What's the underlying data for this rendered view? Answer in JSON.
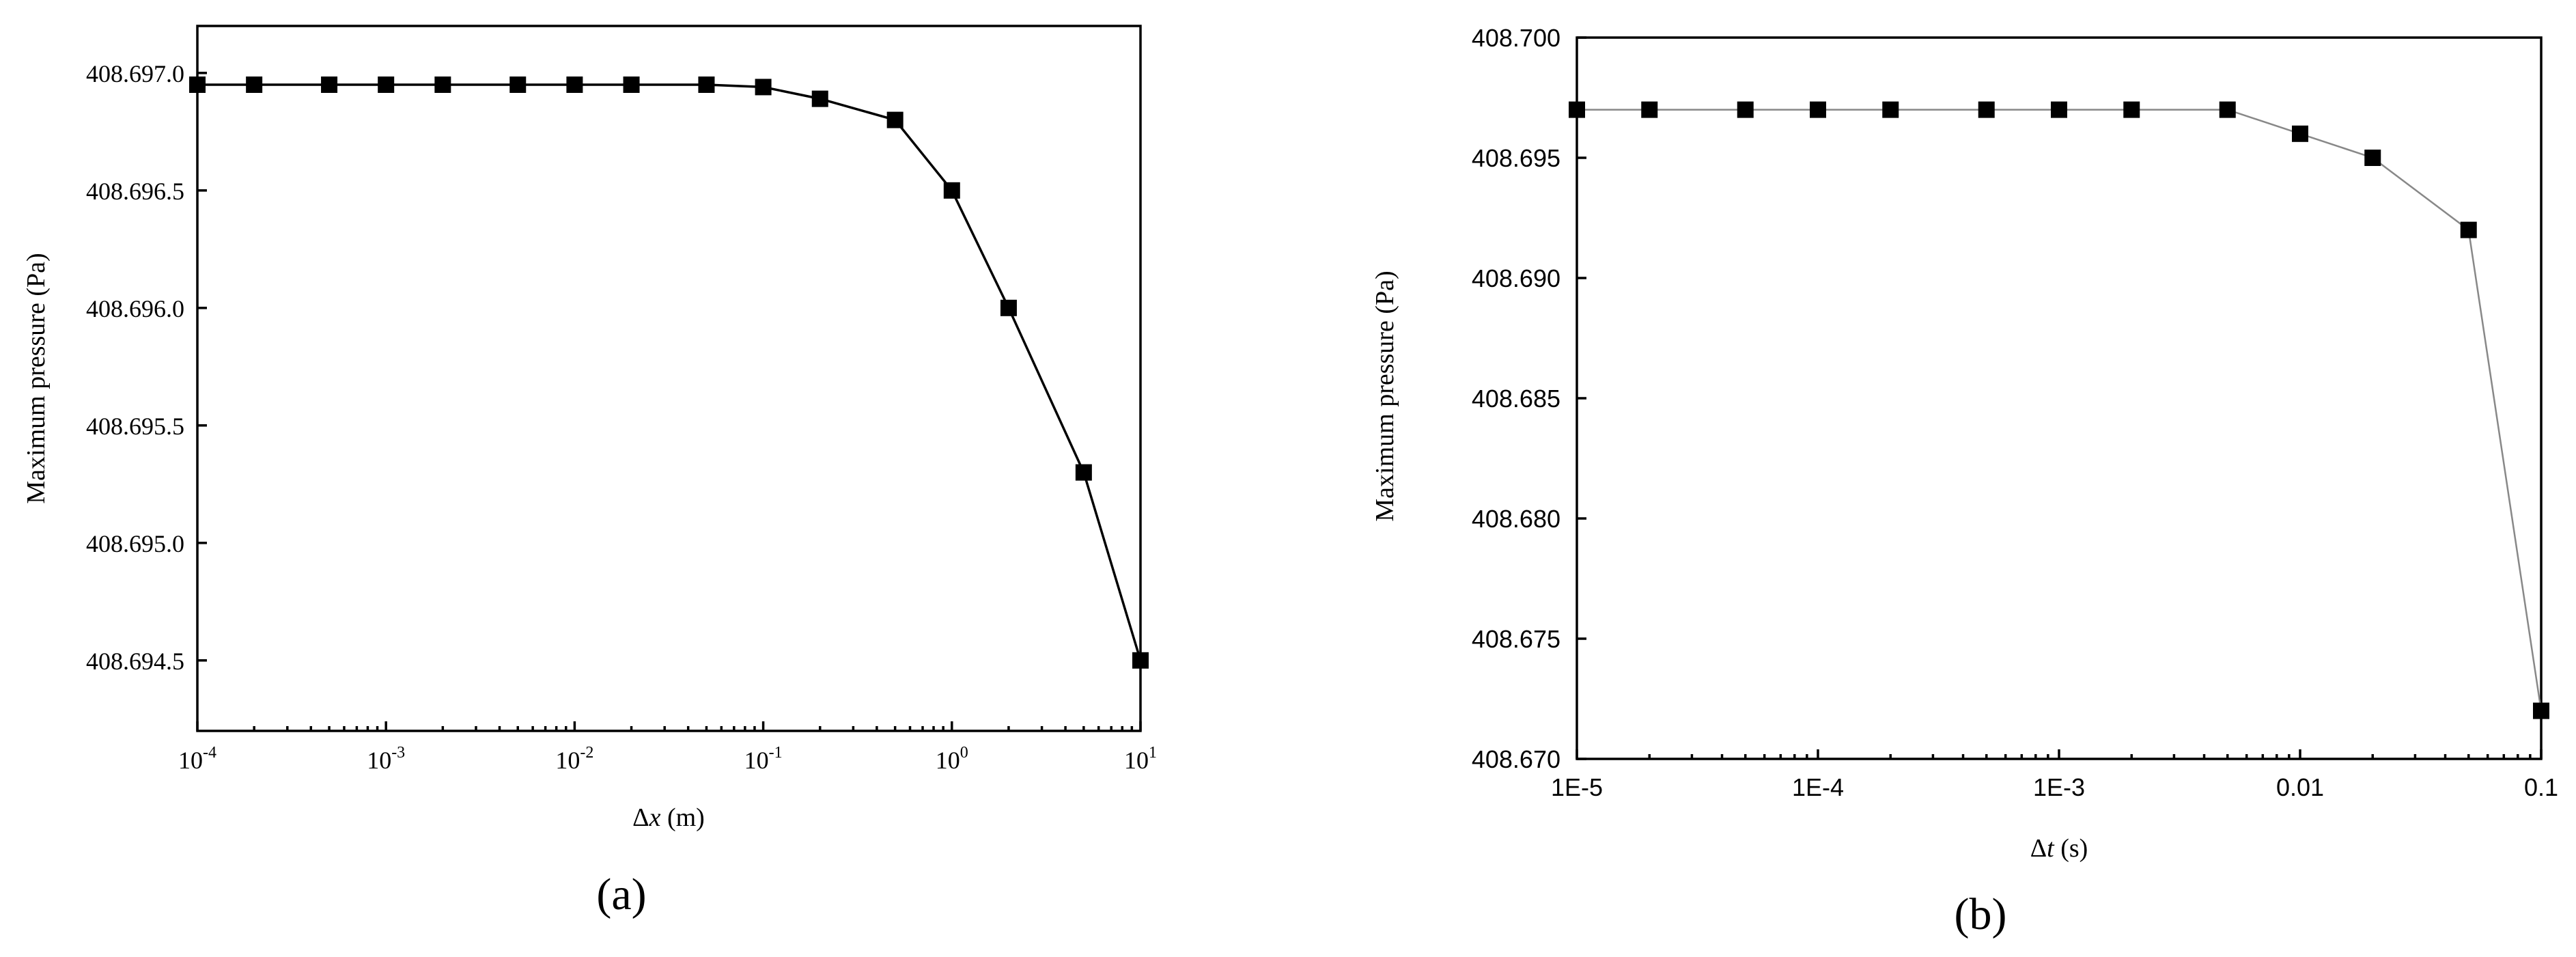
{
  "chart_data": [
    {
      "type": "scatter",
      "panel_label": "(a)",
      "xlabel": "Δx (m)",
      "xlabel_symbol": "Δ",
      "xlabel_var": "x",
      "xlabel_unit": " (m)",
      "ylabel": "Maximum pressure (Pa)",
      "xscale": "log",
      "xlim": [
        0.0001,
        10
      ],
      "ylim": [
        408.6942,
        408.6972
      ],
      "x_ticks": [
        {
          "value": 0.0001,
          "base": "10",
          "exp": "-4"
        },
        {
          "value": 0.001,
          "base": "10",
          "exp": "-3"
        },
        {
          "value": 0.01,
          "base": "10",
          "exp": "-2"
        },
        {
          "value": 0.1,
          "base": "10",
          "exp": "-1"
        },
        {
          "value": 1,
          "base": "10",
          "exp": "0"
        },
        {
          "value": 10,
          "base": "10",
          "exp": "1"
        }
      ],
      "y_ticks": [
        408.6945,
        408.695,
        408.6955,
        408.696,
        408.6965,
        408.697
      ],
      "y_tick_labels": [
        "408.694.5",
        "408.695.0",
        "408.695.5",
        "408.696.0",
        "408.696.5",
        "408.697.0"
      ],
      "grid": false,
      "legend": "none",
      "line_color": "#000000",
      "marker_color": "#000000",
      "x": [
        0.0001,
        0.0002,
        0.0005,
        0.001,
        0.002,
        0.005,
        0.01,
        0.02,
        0.05,
        0.1,
        0.2,
        0.5,
        1,
        2,
        5,
        10
      ],
      "y": [
        408.69695,
        408.69695,
        408.69695,
        408.69695,
        408.69695,
        408.69695,
        408.69695,
        408.69695,
        408.69695,
        408.69694,
        408.69689,
        408.6968,
        408.6965,
        408.696,
        408.6953,
        408.6945
      ]
    },
    {
      "type": "scatter",
      "panel_label": "(b)",
      "xlabel": "Δt (s)",
      "xlabel_symbol": "Δ",
      "xlabel_var": "t",
      "xlabel_unit": " (s)",
      "ylabel": "Maximum pressure (Pa)",
      "xscale": "log",
      "xlim": [
        1e-05,
        0.1
      ],
      "ylim": [
        408.67,
        408.7
      ],
      "x_ticks": [
        {
          "value": 1e-05,
          "label": "1E-5"
        },
        {
          "value": 0.0001,
          "label": "1E-4"
        },
        {
          "value": 0.001,
          "label": "1E-3"
        },
        {
          "value": 0.01,
          "label": "0.01"
        },
        {
          "value": 0.1,
          "label": "0.1"
        }
      ],
      "y_ticks": [
        408.67,
        408.675,
        408.68,
        408.685,
        408.69,
        408.695,
        408.7
      ],
      "y_tick_labels": [
        "408.670",
        "408.675",
        "408.680",
        "408.685",
        "408.690",
        "408.695",
        "408.700"
      ],
      "grid": false,
      "legend": "none",
      "line_color": "#888888",
      "marker_color": "#000000",
      "x": [
        1e-05,
        2e-05,
        5e-05,
        0.0001,
        0.0002,
        0.0005,
        0.001,
        0.002,
        0.005,
        0.01,
        0.02,
        0.05,
        0.1
      ],
      "y": [
        408.697,
        408.697,
        408.697,
        408.697,
        408.697,
        408.697,
        408.697,
        408.697,
        408.697,
        408.696,
        408.695,
        408.692,
        408.672
      ]
    }
  ]
}
